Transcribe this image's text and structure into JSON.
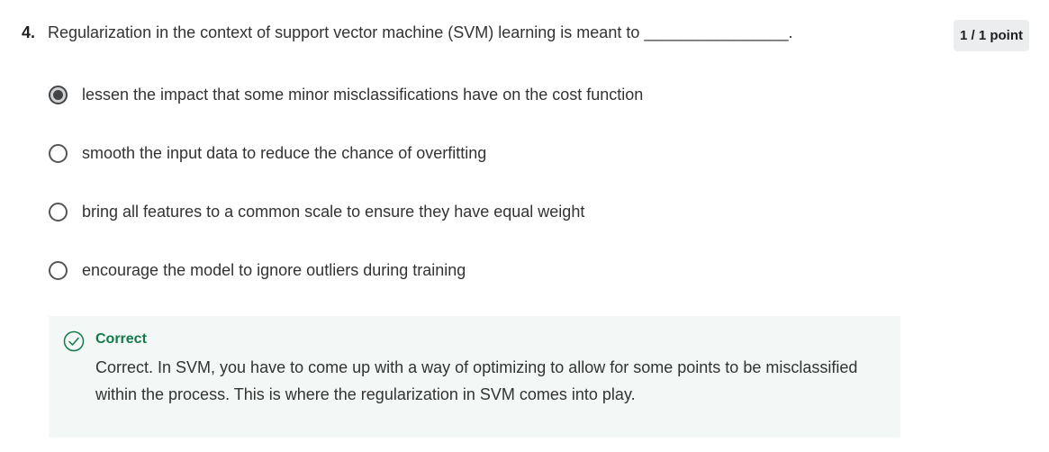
{
  "question": {
    "number": "4.",
    "text": "Regularization in the context of support vector machine (SVM) learning is meant to ________________."
  },
  "points": "1 / 1 point",
  "options": [
    {
      "label": "lessen the impact that some minor misclassifications have on the cost function",
      "selected": true
    },
    {
      "label": "smooth the input data to reduce the chance of overfitting",
      "selected": false
    },
    {
      "label": "bring all features to a common scale to ensure they have equal weight",
      "selected": false
    },
    {
      "label": "encourage the model to ignore outliers during training",
      "selected": false
    }
  ],
  "feedback": {
    "status": "Correct",
    "text": "Correct. In SVM, you have to come up with a way of optimizing to allow for some points to be misclassified within the process. This is where the regularization in SVM comes into play.",
    "icon": "check-circle-icon",
    "color": "#137a4a"
  }
}
